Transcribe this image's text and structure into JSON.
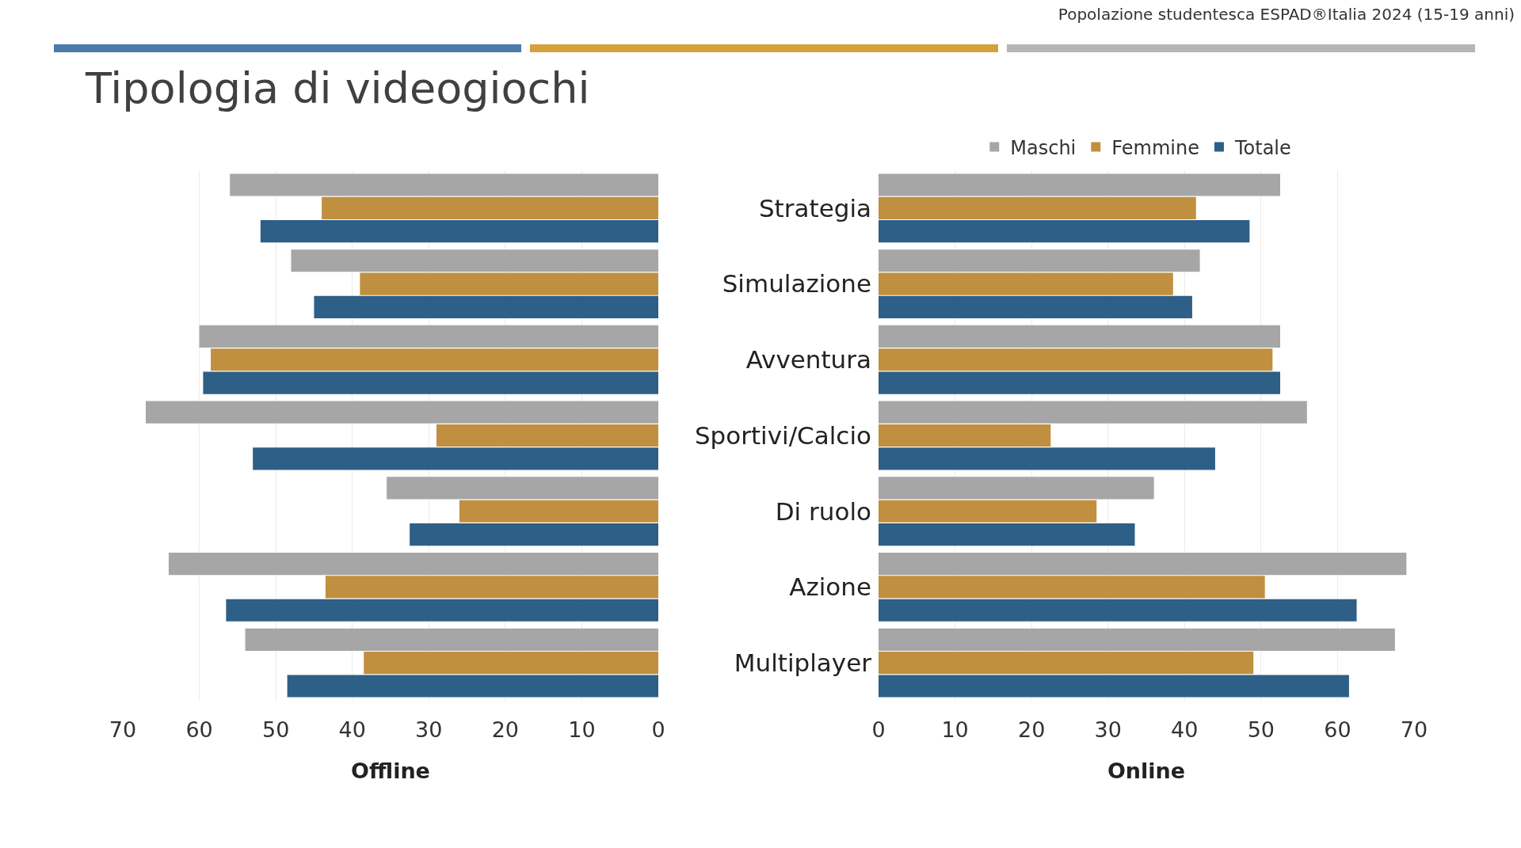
{
  "chart_data": [
    {
      "type": "bar",
      "orientation": "horizontal",
      "title": "Tipologia di videogiochi",
      "annotations": [
        "Popolazione studentesca ESPAD®Italia 2024 (15-19 anni)"
      ],
      "xlabel": "Offline",
      "categories": [
        null,
        null,
        null,
        null,
        null,
        null,
        null
      ],
      "series": [
        {
          "color": "#a6a6a6",
          "values": [
            56,
            48,
            60,
            67,
            35.5,
            64,
            54
          ]
        },
        {
          "color": "#c09040",
          "values": [
            44,
            39,
            58.5,
            29,
            26,
            43.5,
            38.5
          ]
        },
        {
          "color": "#2e5f86",
          "values": [
            52,
            45,
            59.5,
            53,
            32.5,
            56.5,
            48.5
          ]
        }
      ],
      "xlim": [
        70,
        0
      ],
      "xticks": [
        70,
        60,
        50,
        40,
        30,
        20,
        10,
        0
      ],
      "grid": "x",
      "tick_labels": "x"
    },
    {
      "type": "bar",
      "orientation": "horizontal",
      "xlabel": "Online",
      "categories": [
        "Strategia",
        "Simulazione",
        "Avventura",
        "Sportivi/Calcio",
        "Di ruolo",
        "Azione",
        "Multiplayer"
      ],
      "series": [
        {
          "name": "Maschi",
          "color": "#a6a6a6",
          "values": [
            52.5,
            42,
            52.5,
            56,
            36,
            69,
            67.5
          ]
        },
        {
          "name": "Femmine",
          "color": "#c09040",
          "values": [
            41.5,
            38.5,
            51.5,
            22.5,
            28.5,
            50.5,
            49
          ]
        },
        {
          "name": "Totale",
          "color": "#2e5f86",
          "values": [
            48.5,
            41,
            52.5,
            44,
            33.5,
            62.5,
            61.5
          ]
        }
      ],
      "xlim": [
        0,
        70
      ],
      "xticks": [
        0,
        10,
        20,
        30,
        40,
        50,
        60,
        70
      ],
      "grid": "x",
      "legend": "top right"
    }
  ]
}
